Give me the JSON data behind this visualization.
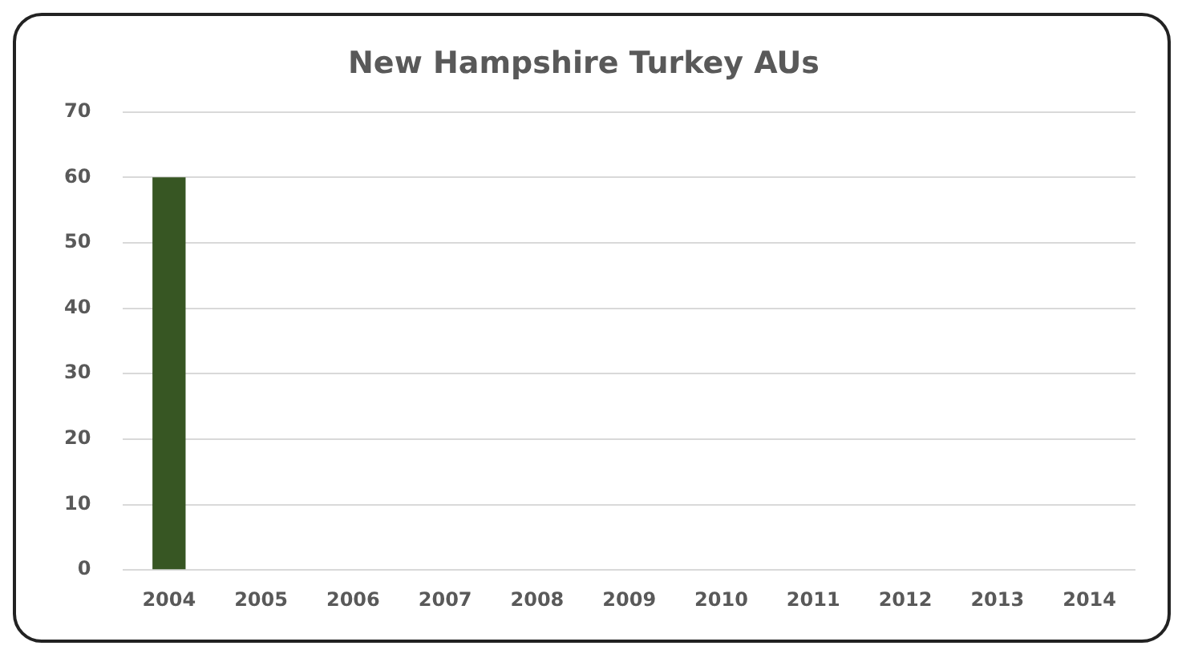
{
  "chart_data": {
    "type": "bar",
    "title": "New Hampshire Turkey AUs",
    "categories": [
      "2004",
      "2005",
      "2006",
      "2007",
      "2008",
      "2009",
      "2010",
      "2011",
      "2012",
      "2013",
      "2014"
    ],
    "values": [
      60,
      0,
      0,
      0,
      0,
      0,
      0,
      0,
      0,
      0,
      0
    ],
    "color": "#375623",
    "ylim": [
      0,
      70
    ],
    "yticks": [
      0,
      10,
      20,
      30,
      40,
      50,
      60,
      70
    ],
    "grid": "y"
  }
}
